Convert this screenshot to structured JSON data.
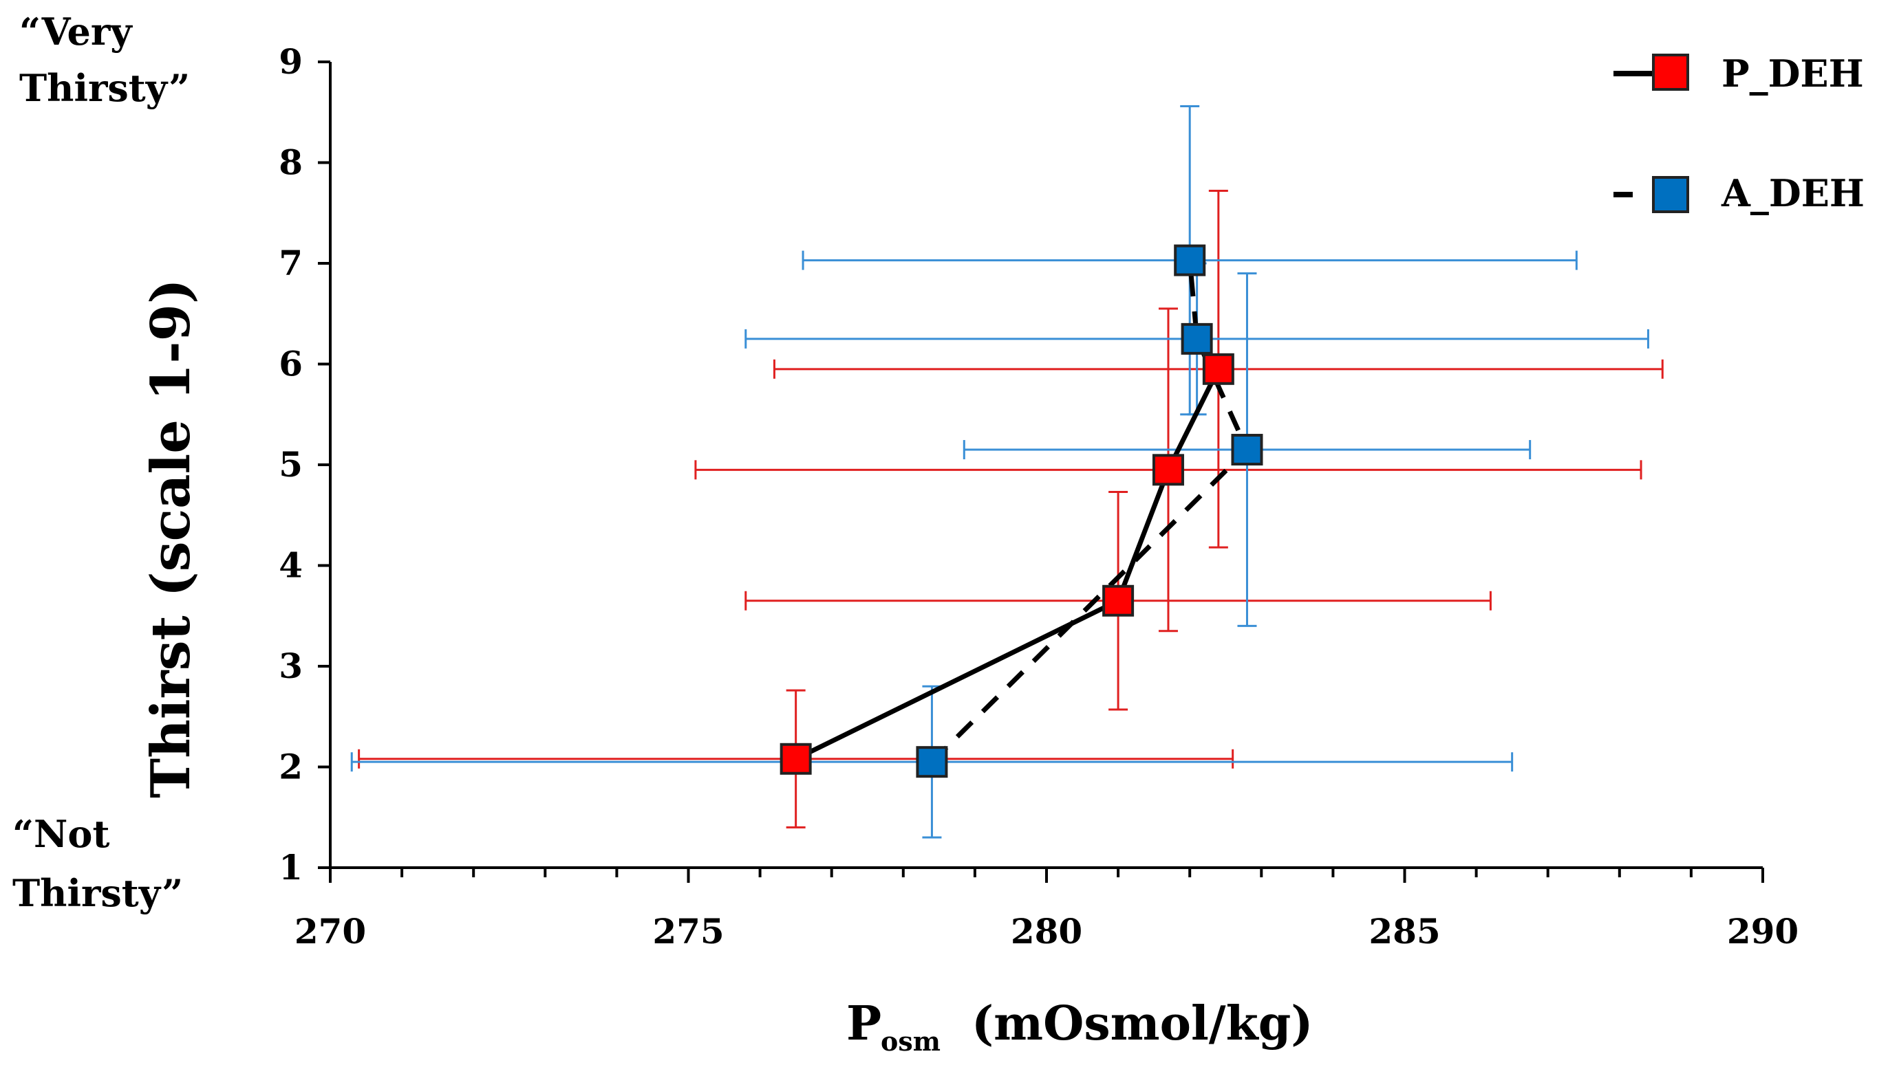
{
  "chart_data": {
    "type": "scatter",
    "xlabel_main": "P",
    "xlabel_subscript": "osm",
    "xlabel_units": "(mOsmol/kg)",
    "ylabel": "Thirst (scale 1-9)",
    "xlim": [
      270,
      290
    ],
    "ylim": [
      1,
      9
    ],
    "xticks": [
      270,
      275,
      280,
      285,
      290
    ],
    "yticks": [
      1,
      2,
      3,
      4,
      5,
      6,
      7,
      8,
      9
    ],
    "grid": false,
    "legend_position": "top-right",
    "annotations": {
      "top": [
        "“Very",
        "Thirsty”"
      ],
      "bottom": [
        "“Not",
        "Thirsty”"
      ]
    },
    "series": [
      {
        "name": "P_DEH",
        "color": "#ff0000",
        "edge_color": "#e02020",
        "line": "solid",
        "points": [
          {
            "x": 276.5,
            "y": 2.08,
            "xerr": 6.1,
            "yerr": 0.68
          },
          {
            "x": 281.0,
            "y": 3.65,
            "xerr": 5.2,
            "yerr": 1.08
          },
          {
            "x": 281.7,
            "y": 4.95,
            "xerr": 6.6,
            "yerr": 1.6
          },
          {
            "x": 282.4,
            "y": 5.95,
            "xerr": 6.2,
            "yerr": 1.77
          }
        ]
      },
      {
        "name": "A_DEH",
        "color": "#0070c0",
        "edge_color": "#3a8fd6",
        "line": "dashed",
        "points": [
          {
            "x": 278.4,
            "y": 2.05,
            "xerr": 8.1,
            "yerr": 0.75
          },
          {
            "x": 282.8,
            "y": 5.15,
            "xerr": 3.95,
            "yerr": 1.75
          },
          {
            "x": 282.1,
            "y": 6.25,
            "xerr": 6.3,
            "yerr": 0.75
          },
          {
            "x": 282.0,
            "y": 7.03,
            "xerr": 5.4,
            "yerr": 1.53
          }
        ]
      }
    ]
  }
}
